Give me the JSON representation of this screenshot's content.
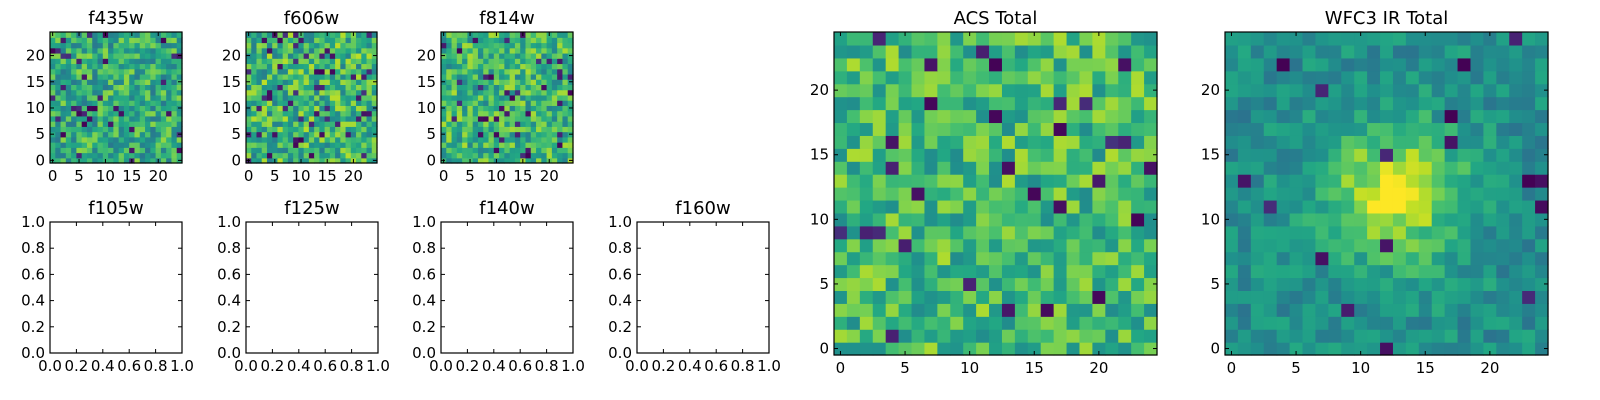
{
  "figure": {
    "colormap": "viridis",
    "background": "#ffffff"
  },
  "chart_data": [
    {
      "type": "heatmap",
      "title": "f435w",
      "grid_size": 25,
      "xlim": [
        -0.5,
        24.5
      ],
      "ylim": [
        -0.5,
        24.5
      ],
      "xticks": [
        0,
        5,
        10,
        15,
        20
      ],
      "yticks": [
        0,
        5,
        10,
        15,
        20
      ],
      "xtick_labels": [
        "0",
        "5",
        "10",
        "15",
        "20"
      ],
      "ytick_labels": [
        "0",
        "5",
        "10",
        "15",
        "20"
      ],
      "noise_seed": 11,
      "mean": 0.62,
      "spread": 0.22,
      "dark_fraction": 0.06
    },
    {
      "type": "heatmap",
      "title": "f606w",
      "grid_size": 25,
      "xlim": [
        -0.5,
        24.5
      ],
      "ylim": [
        -0.5,
        24.5
      ],
      "xticks": [
        0,
        5,
        10,
        15,
        20
      ],
      "yticks": [
        0,
        5,
        10,
        15,
        20
      ],
      "xtick_labels": [
        "0",
        "5",
        "10",
        "15",
        "20"
      ],
      "ytick_labels": [
        "0",
        "5",
        "10",
        "15",
        "20"
      ],
      "noise_seed": 23,
      "mean": 0.66,
      "spread": 0.24,
      "dark_fraction": 0.07
    },
    {
      "type": "heatmap",
      "title": "f814w",
      "grid_size": 25,
      "xlim": [
        -0.5,
        24.5
      ],
      "ylim": [
        -0.5,
        24.5
      ],
      "xticks": [
        0,
        5,
        10,
        15,
        20
      ],
      "yticks": [
        0,
        5,
        10,
        15,
        20
      ],
      "xtick_labels": [
        "0",
        "5",
        "10",
        "15",
        "20"
      ],
      "ytick_labels": [
        "0",
        "5",
        "10",
        "15",
        "20"
      ],
      "noise_seed": 37,
      "mean": 0.66,
      "spread": 0.22,
      "dark_fraction": 0.06
    },
    {
      "type": "empty",
      "title": "f105w",
      "xlim": [
        0,
        1
      ],
      "ylim": [
        0,
        1
      ],
      "xtick_labels": [
        "0.0",
        "0.2",
        "0.4",
        "0.6",
        "0.8",
        "1.0"
      ],
      "ytick_labels": [
        "0.0",
        "0.2",
        "0.4",
        "0.6",
        "0.8",
        "1.0"
      ]
    },
    {
      "type": "empty",
      "title": "f125w",
      "xlim": [
        0,
        1
      ],
      "ylim": [
        0,
        1
      ],
      "xtick_labels": [
        "0.0",
        "0.2",
        "0.4",
        "0.6",
        "0.8",
        "1.0"
      ],
      "ytick_labels": [
        "0.0",
        "0.2",
        "0.4",
        "0.6",
        "0.8",
        "1.0"
      ]
    },
    {
      "type": "empty",
      "title": "f140w",
      "xlim": [
        0,
        1
      ],
      "ylim": [
        0,
        1
      ],
      "xtick_labels": [
        "0.0",
        "0.2",
        "0.4",
        "0.6",
        "0.8",
        "1.0"
      ],
      "ytick_labels": [
        "0.0",
        "0.2",
        "0.4",
        "0.6",
        "0.8",
        "1.0"
      ]
    },
    {
      "type": "empty",
      "title": "f160w",
      "xlim": [
        0,
        1
      ],
      "ylim": [
        0,
        1
      ],
      "xtick_labels": [
        "0.0",
        "0.2",
        "0.4",
        "0.6",
        "0.8",
        "1.0"
      ],
      "ytick_labels": [
        "0.0",
        "0.2",
        "0.4",
        "0.6",
        "0.8",
        "1.0"
      ]
    },
    {
      "type": "heatmap",
      "title": "ACS Total",
      "grid_size": 25,
      "xlim": [
        -0.5,
        24.5
      ],
      "ylim": [
        -0.5,
        24.5
      ],
      "xticks": [
        0,
        5,
        10,
        15,
        20
      ],
      "yticks": [
        0,
        5,
        10,
        15,
        20
      ],
      "xtick_labels": [
        "0",
        "5",
        "10",
        "15",
        "20"
      ],
      "ytick_labels": [
        "0",
        "5",
        "10",
        "15",
        "20"
      ],
      "noise_seed": 53,
      "mean": 0.68,
      "spread": 0.2,
      "dark_fraction": 0.04
    },
    {
      "type": "heatmap",
      "title": "WFC3 IR Total",
      "grid_size": 25,
      "xlim": [
        -0.5,
        24.5
      ],
      "ylim": [
        -0.5,
        24.5
      ],
      "xticks": [
        0,
        5,
        10,
        15,
        20
      ],
      "yticks": [
        0,
        5,
        10,
        15,
        20
      ],
      "xtick_labels": [
        "0",
        "5",
        "10",
        "15",
        "20"
      ],
      "ytick_labels": [
        "0",
        "5",
        "10",
        "15",
        "20"
      ],
      "noise_seed": 71,
      "mean": 0.5,
      "spread": 0.12,
      "dark_fraction": 0.03,
      "source_center": [
        12.5,
        12
      ],
      "source_amplitude": 0.45,
      "source_sigma": 3.6
    }
  ]
}
